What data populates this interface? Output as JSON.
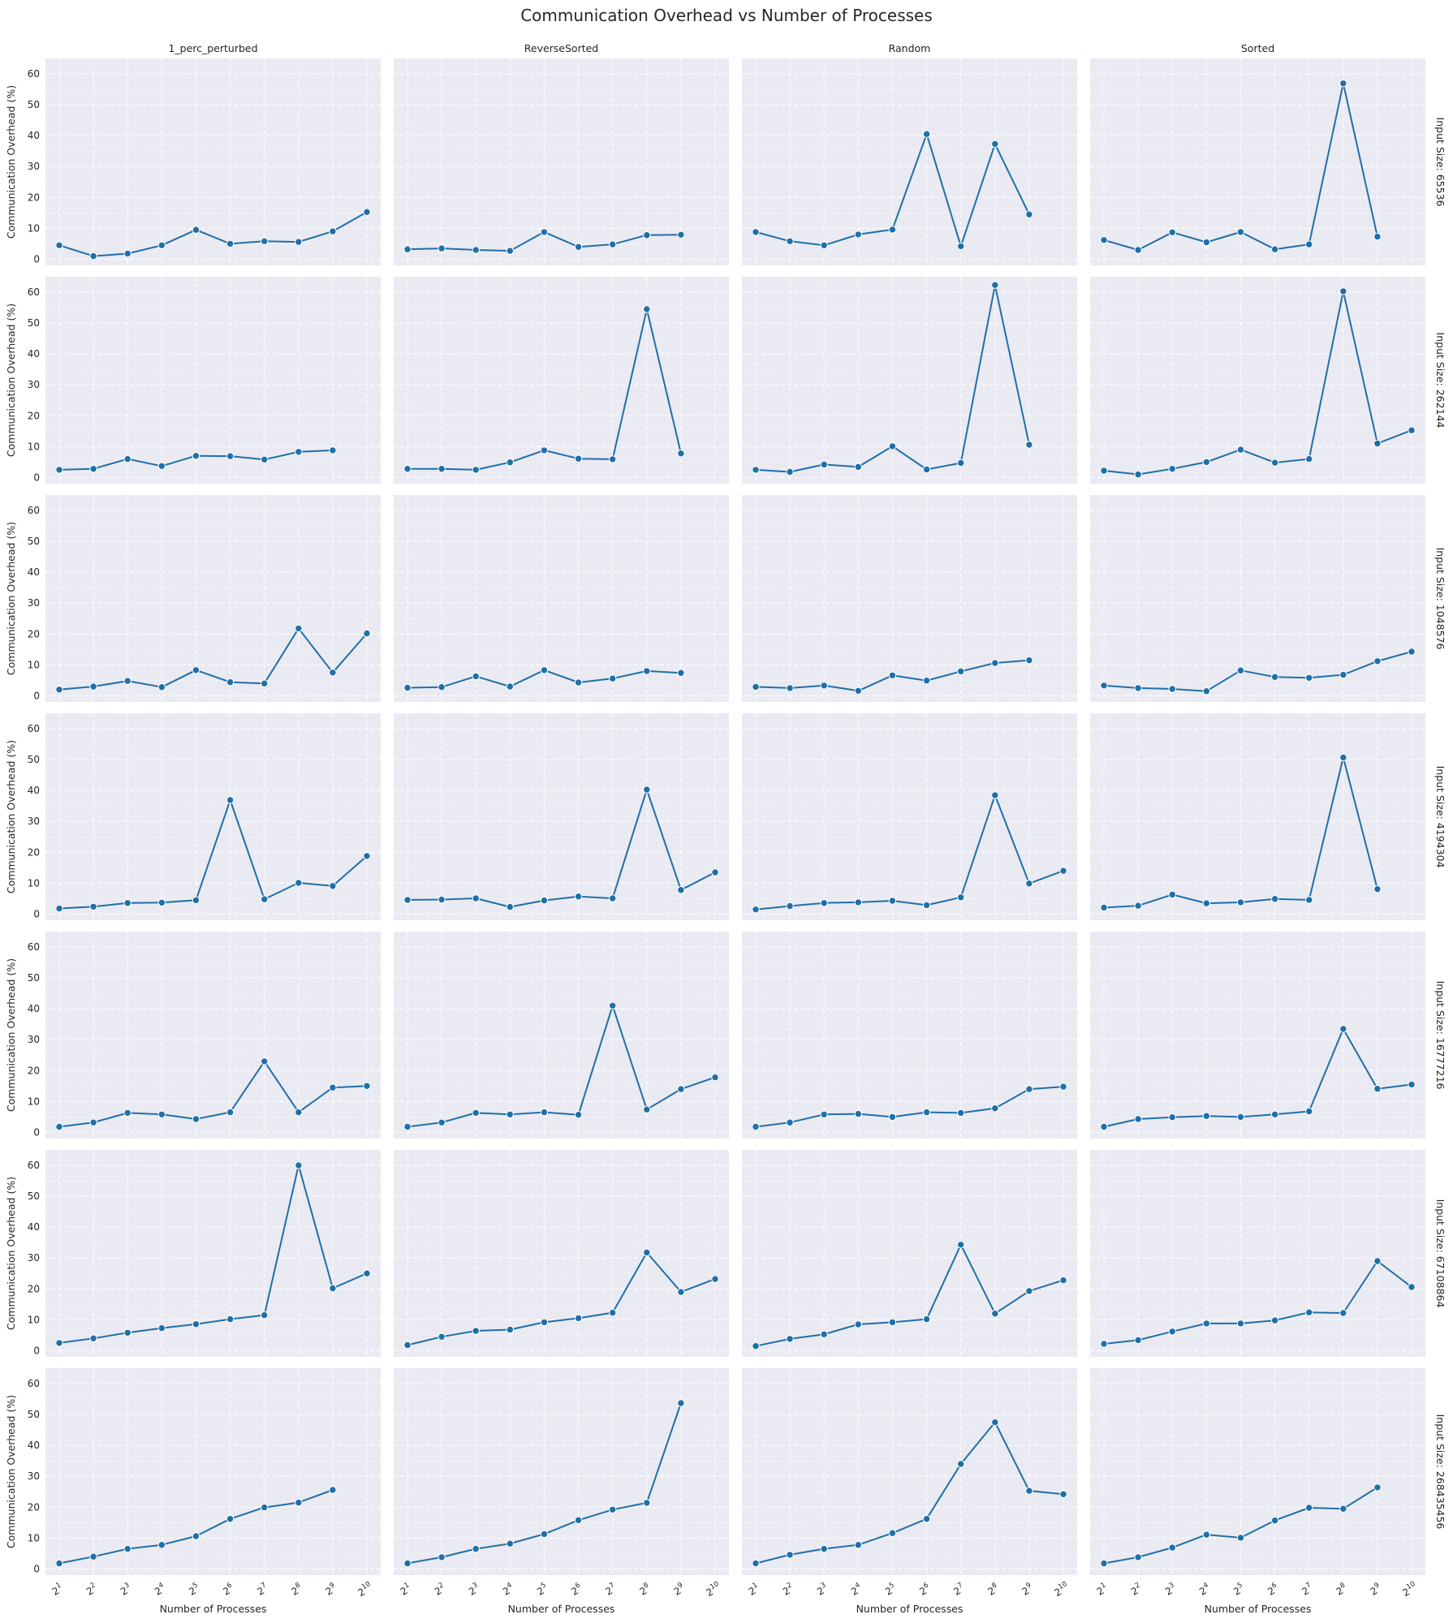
{
  "figure": {
    "title": "Communication Overhead vs Number of Processes",
    "xlabel": "Number of Processes",
    "ylabel": "Communication Overhead (%)",
    "x_tick_base": "2",
    "x_tick_exponents": [
      "1",
      "2",
      "3",
      "4",
      "5",
      "6",
      "7",
      "8",
      "9",
      "10"
    ],
    "y_ticks": [
      0,
      10,
      20,
      30,
      40,
      50,
      60
    ],
    "ylim": [
      -2,
      65
    ],
    "line_color": "#1f6fa8",
    "panel_bg": "#eaeaf2",
    "columns": [
      "1_perc_perturbed",
      "ReverseSorted",
      "Random",
      "Sorted"
    ],
    "rows": [
      "Input Size: 65536",
      "Input Size: 262144",
      "Input Size: 1048576",
      "Input Size: 4194304",
      "Input Size: 16777216",
      "Input Size: 67108864",
      "Input Size: 268435456"
    ]
  },
  "chart_data": {
    "type": "line",
    "x": [
      2,
      4,
      8,
      16,
      32,
      64,
      128,
      256,
      512,
      1024
    ],
    "x_scale": "log2",
    "panels": [
      [
        [
          4.5,
          1.0,
          1.8,
          4.5,
          9.5,
          5.0,
          5.8,
          5.6,
          9.0,
          15.3
        ],
        [
          3.2,
          3.5,
          3.0,
          2.7,
          8.8,
          4.0,
          4.8,
          7.8,
          7.9,
          null
        ],
        [
          8.8,
          5.8,
          4.5,
          8.0,
          9.6,
          40.5,
          4.2,
          37.3,
          14.5,
          null
        ],
        [
          6.2,
          3.0,
          8.7,
          5.5,
          8.8,
          3.2,
          4.8,
          56.9,
          7.3,
          null
        ]
      ],
      [
        [
          2.5,
          2.8,
          6.0,
          3.7,
          7.0,
          6.9,
          5.8,
          8.3,
          8.8,
          null
        ],
        [
          2.8,
          2.8,
          2.5,
          4.9,
          8.8,
          6.1,
          5.9,
          54.5,
          7.8,
          null
        ],
        [
          2.5,
          1.8,
          4.2,
          3.4,
          10.1,
          2.6,
          4.7,
          62.3,
          10.6,
          null
        ],
        [
          2.2,
          1.0,
          2.8,
          5.0,
          9.0,
          4.8,
          6.0,
          60.3,
          11.0,
          15.3
        ]
      ],
      [
        [
          2.0,
          3.0,
          4.8,
          2.8,
          8.3,
          4.4,
          4.0,
          21.8,
          7.5,
          20.2
        ],
        [
          2.6,
          2.8,
          6.3,
          3.0,
          8.3,
          4.3,
          5.6,
          8.0,
          7.4,
          null
        ],
        [
          2.9,
          2.5,
          3.3,
          1.6,
          6.6,
          4.9,
          7.9,
          10.6,
          11.5,
          null
        ],
        [
          3.3,
          2.5,
          2.2,
          1.5,
          8.2,
          6.1,
          5.8,
          6.8,
          11.2,
          14.3
        ]
      ],
      [
        [
          1.8,
          2.4,
          3.6,
          3.7,
          4.5,
          36.9,
          4.8,
          10.1,
          9.1,
          18.8
        ],
        [
          4.6,
          4.7,
          5.1,
          2.3,
          4.4,
          5.7,
          5.1,
          40.3,
          7.8,
          13.5
        ],
        [
          1.5,
          2.6,
          3.6,
          3.8,
          4.3,
          2.9,
          5.4,
          38.5,
          9.9,
          14.0
        ],
        [
          2.1,
          2.7,
          6.3,
          3.5,
          3.8,
          4.9,
          4.6,
          50.7,
          8.1,
          null
        ]
      ],
      [
        [
          1.8,
          3.2,
          6.3,
          5.8,
          4.3,
          6.5,
          23.0,
          6.5,
          14.5,
          15.0
        ],
        [
          1.8,
          3.2,
          6.3,
          5.8,
          6.5,
          5.7,
          41.0,
          7.4,
          14.0,
          17.8
        ],
        [
          1.8,
          3.2,
          5.8,
          6.0,
          5.0,
          6.5,
          6.3,
          7.8,
          14.0,
          14.8
        ],
        [
          1.8,
          4.3,
          4.9,
          5.3,
          5.0,
          5.8,
          6.8,
          33.5,
          14.1,
          15.5
        ]
      ],
      [
        [
          2.5,
          4.0,
          5.8,
          7.3,
          8.6,
          10.2,
          11.5,
          60.0,
          20.2,
          25.0
        ],
        [
          1.8,
          4.5,
          6.4,
          6.8,
          9.2,
          10.5,
          12.3,
          31.8,
          19.0,
          23.2
        ],
        [
          1.5,
          3.8,
          5.3,
          8.5,
          9.2,
          10.2,
          34.3,
          12.0,
          19.3,
          22.8
        ],
        [
          2.2,
          3.4,
          6.2,
          8.8,
          8.8,
          9.8,
          12.4,
          12.2,
          29.0,
          20.6
        ]
      ],
      [
        [
          1.8,
          4.0,
          6.5,
          7.8,
          10.6,
          16.2,
          19.9,
          21.5,
          25.6,
          null
        ],
        [
          1.8,
          3.8,
          6.5,
          8.2,
          11.3,
          15.8,
          19.2,
          21.4,
          53.7,
          null
        ],
        [
          1.8,
          4.6,
          6.5,
          7.8,
          11.6,
          16.2,
          34.0,
          47.5,
          25.3,
          24.2
        ],
        [
          1.8,
          3.8,
          6.9,
          11.1,
          10.1,
          15.7,
          19.8,
          19.5,
          26.4,
          null
        ]
      ]
    ]
  }
}
